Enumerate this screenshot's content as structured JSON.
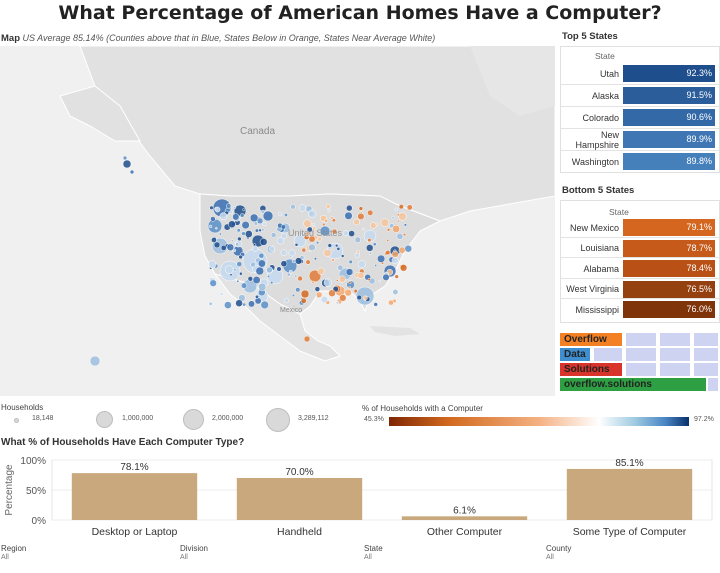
{
  "title": "What Percentage of American Homes Have a Computer?",
  "map": {
    "caption_bold": "Map",
    "caption_avg": "US Average 85.14%",
    "caption_note": "(Counties above that in Blue, States Below in Orange, States Near Average White)",
    "labels": {
      "canada": "Canada",
      "us": "United States",
      "mexico": "Mexico"
    }
  },
  "top5": {
    "title": "Top 5 States",
    "header": "State",
    "rows": [
      {
        "state": "Utah",
        "value": "92.3%",
        "color": "#1f4e8c"
      },
      {
        "state": "Alaska",
        "value": "91.5%",
        "color": "#2a5d99"
      },
      {
        "state": "Colorado",
        "value": "90.6%",
        "color": "#3469a8"
      },
      {
        "state": "New Hampshire",
        "value": "89.9%",
        "color": "#3f76b3"
      },
      {
        "state": "Washington",
        "value": "89.8%",
        "color": "#4580bb"
      }
    ]
  },
  "bottom5": {
    "title": "Bottom 5 States",
    "header": "State",
    "rows": [
      {
        "state": "New Mexico",
        "value": "79.1%",
        "color": "#d4661f"
      },
      {
        "state": "Louisiana",
        "value": "78.7%",
        "color": "#c65a1a"
      },
      {
        "state": "Alabama",
        "value": "78.4%",
        "color": "#b95016"
      },
      {
        "state": "West Virginia",
        "value": "76.5%",
        "color": "#94400f"
      },
      {
        "state": "Mississippi",
        "value": "76.0%",
        "color": "#7f3409"
      }
    ]
  },
  "so_widget": {
    "rows": [
      {
        "label": "Overflow",
        "color": "#f48024"
      },
      {
        "label": "Data",
        "color": "#3e8ed0"
      },
      {
        "label": "Solutions",
        "color": "#d9342b"
      },
      {
        "label": "overflow.solutions",
        "color": "#2ea043"
      }
    ]
  },
  "legend_households": {
    "title": "Households",
    "sizes": [
      "18,148",
      "1,000,000",
      "2,000,000",
      "3,289,112"
    ]
  },
  "legend_percent": {
    "title": "% of Households with a Computer",
    "min": "45.3%",
    "max": "97.2%",
    "colors": [
      "#7f2704",
      "#d2691e",
      "#f4b183",
      "#ffffff",
      "#9ecae1",
      "#4a86c5",
      "#08306b"
    ]
  },
  "bar_section_title": "What % of Households Have Each Computer Type?",
  "chart_data": {
    "type": "bar",
    "categories": [
      "Desktop or Laptop",
      "Handheld",
      "Other Computer",
      "Some Type of Computer"
    ],
    "values": [
      78.1,
      70.0,
      6.1,
      85.1
    ],
    "value_labels": [
      "78.1%",
      "70.0%",
      "6.1%",
      "85.1%"
    ],
    "ylabel": "Percentage",
    "yticks": [
      "100%",
      "50%",
      "0%"
    ],
    "tick_values": [
      100,
      50,
      0
    ],
    "ylim": [
      0,
      100
    ],
    "bar_color": "#c8a87c",
    "grid": true
  },
  "filters": [
    {
      "label": "Region",
      "value": "All"
    },
    {
      "label": "Division",
      "value": "All"
    },
    {
      "label": "State",
      "value": "All"
    },
    {
      "label": "County",
      "value": "All"
    }
  ]
}
